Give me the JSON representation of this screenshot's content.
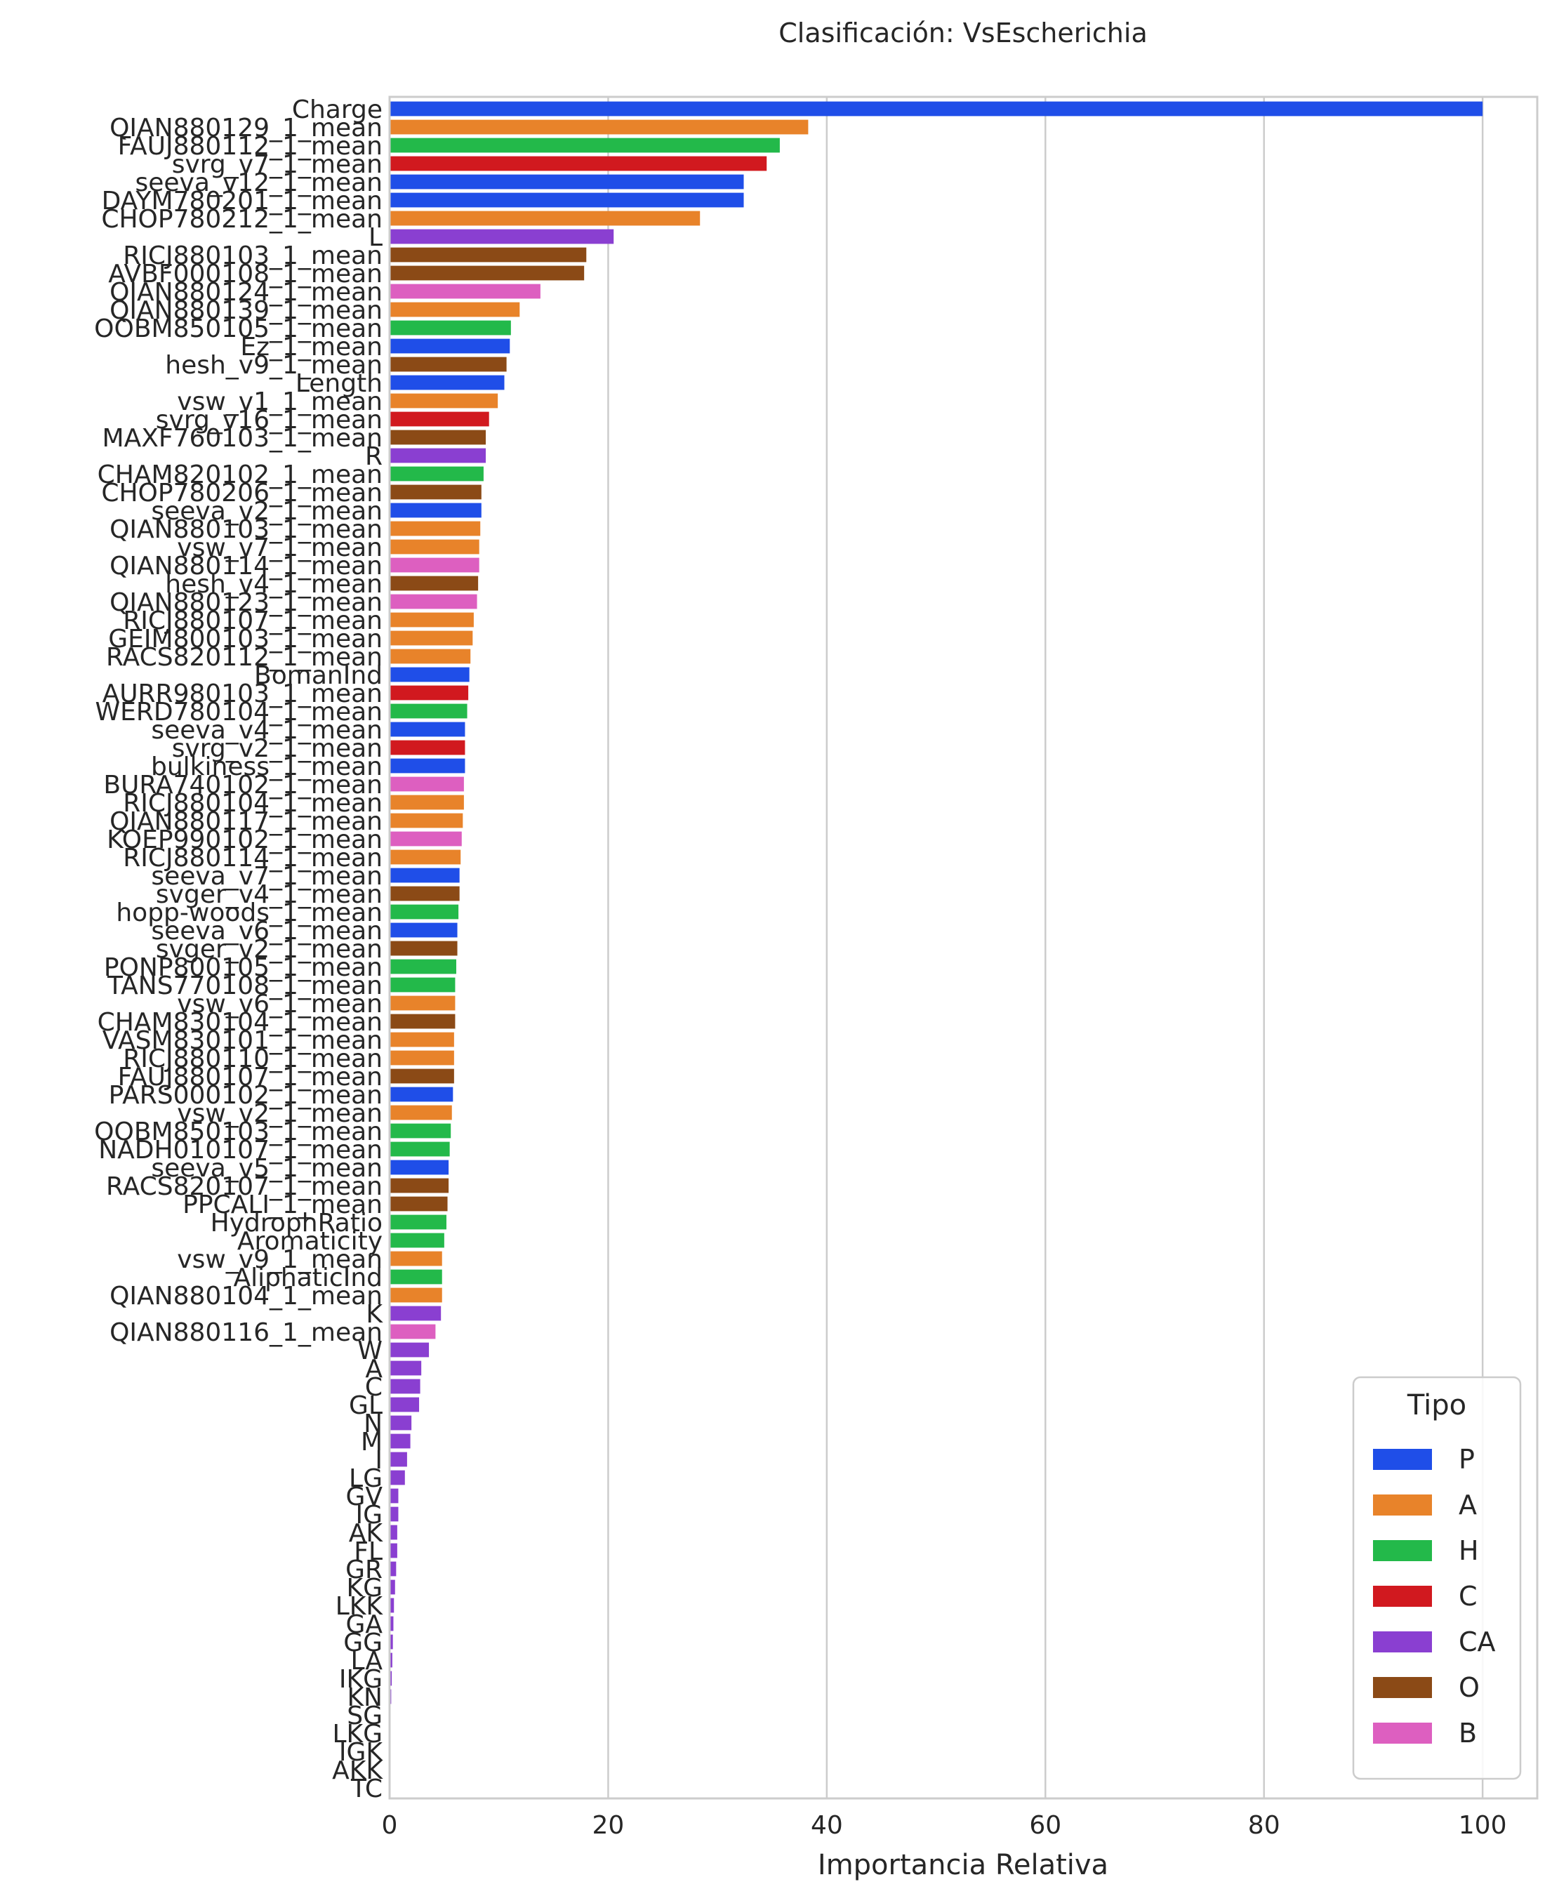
{
  "chart_data": {
    "type": "bar",
    "orientation": "horizontal",
    "title": "Clasificación: VsEscherichia",
    "xlabel": "Importancia Relativa",
    "ylabel": "",
    "xlim": [
      0,
      105
    ],
    "xticks": [
      0,
      20,
      40,
      60,
      80,
      100
    ],
    "grid": true,
    "legend": {
      "title": "Tipo",
      "placement": "bottom-right",
      "entries": [
        {
          "label": "P",
          "color": "#1f4ee8"
        },
        {
          "label": "A",
          "color": "#e8832a"
        },
        {
          "label": "H",
          "color": "#23b94a"
        },
        {
          "label": "C",
          "color": "#d1191f"
        },
        {
          "label": "CA",
          "color": "#8a3fd1"
        },
        {
          "label": "O",
          "color": "#8b4a16"
        },
        {
          "label": "B",
          "color": "#dd5fc0"
        }
      ]
    },
    "bars": [
      {
        "label": "Charge",
        "value": 100,
        "type": "P"
      },
      {
        "label": "QIAN880129_1_mean",
        "value": 38.3,
        "type": "A"
      },
      {
        "label": "FAUJ880112_1_mean",
        "value": 35.7,
        "type": "H"
      },
      {
        "label": "svrg_v7_1_mean",
        "value": 34.5,
        "type": "C"
      },
      {
        "label": "seeva_v12_1_mean",
        "value": 32.4,
        "type": "P"
      },
      {
        "label": "DAYM780201_1_mean",
        "value": 32.4,
        "type": "P"
      },
      {
        "label": "CHOP780212_1_mean",
        "value": 28.4,
        "type": "A"
      },
      {
        "label": "L",
        "value": 20.5,
        "type": "CA"
      },
      {
        "label": "RICJ880103_1_mean",
        "value": 18.0,
        "type": "O"
      },
      {
        "label": "AVBF000108_1_mean",
        "value": 17.8,
        "type": "O"
      },
      {
        "label": "QIAN880124_1_mean",
        "value": 13.8,
        "type": "B"
      },
      {
        "label": "QIAN880139_1_mean",
        "value": 11.9,
        "type": "A"
      },
      {
        "label": "OOBM850105_1_mean",
        "value": 11.1,
        "type": "H"
      },
      {
        "label": "Ez_1_mean",
        "value": 11.0,
        "type": "P"
      },
      {
        "label": "hesh_v9_1_mean",
        "value": 10.7,
        "type": "O"
      },
      {
        "label": "Length",
        "value": 10.5,
        "type": "P"
      },
      {
        "label": "vsw_v1_1_mean",
        "value": 9.9,
        "type": "A"
      },
      {
        "label": "svrg_v16_1_mean",
        "value": 9.1,
        "type": "C"
      },
      {
        "label": "MAXF760103_1_mean",
        "value": 8.8,
        "type": "O"
      },
      {
        "label": "R",
        "value": 8.8,
        "type": "CA"
      },
      {
        "label": "CHAM820102_1_mean",
        "value": 8.6,
        "type": "H"
      },
      {
        "label": "CHOP780206_1_mean",
        "value": 8.4,
        "type": "O"
      },
      {
        "label": "seeva_v2_1_mean",
        "value": 8.4,
        "type": "P"
      },
      {
        "label": "QIAN880103_1_mean",
        "value": 8.3,
        "type": "A"
      },
      {
        "label": "vsw_v7_1_mean",
        "value": 8.2,
        "type": "A"
      },
      {
        "label": "QIAN880114_1_mean",
        "value": 8.2,
        "type": "B"
      },
      {
        "label": "hesh_v4_1_mean",
        "value": 8.1,
        "type": "O"
      },
      {
        "label": "QIAN880123_1_mean",
        "value": 8.0,
        "type": "B"
      },
      {
        "label": "RICJ880107_1_mean",
        "value": 7.7,
        "type": "A"
      },
      {
        "label": "GEIM800103_1_mean",
        "value": 7.6,
        "type": "A"
      },
      {
        "label": "RACS820112_1_mean",
        "value": 7.4,
        "type": "A"
      },
      {
        "label": "BomanInd",
        "value": 7.3,
        "type": "P"
      },
      {
        "label": "AURR980103_1_mean",
        "value": 7.2,
        "type": "C"
      },
      {
        "label": "WERD780104_1_mean",
        "value": 7.1,
        "type": "H"
      },
      {
        "label": "seeva_v4_1_mean",
        "value": 6.9,
        "type": "P"
      },
      {
        "label": "svrg_v2_1_mean",
        "value": 6.9,
        "type": "C"
      },
      {
        "label": "bulkiness_1_mean",
        "value": 6.9,
        "type": "P"
      },
      {
        "label": "BURA740102_1_mean",
        "value": 6.8,
        "type": "B"
      },
      {
        "label": "RICJ880104_1_mean",
        "value": 6.8,
        "type": "A"
      },
      {
        "label": "QIAN880117_1_mean",
        "value": 6.7,
        "type": "A"
      },
      {
        "label": "KOEP990102_1_mean",
        "value": 6.6,
        "type": "B"
      },
      {
        "label": "RICJ880114_1_mean",
        "value": 6.5,
        "type": "A"
      },
      {
        "label": "seeva_v7_1_mean",
        "value": 6.4,
        "type": "P"
      },
      {
        "label": "svger_v4_1_mean",
        "value": 6.4,
        "type": "O"
      },
      {
        "label": "hopp-woods_1_mean",
        "value": 6.3,
        "type": "H"
      },
      {
        "label": "seeva_v6_1_mean",
        "value": 6.2,
        "type": "P"
      },
      {
        "label": "svger_v2_1_mean",
        "value": 6.2,
        "type": "O"
      },
      {
        "label": "PONP800105_1_mean",
        "value": 6.1,
        "type": "H"
      },
      {
        "label": "TANS770108_1_mean",
        "value": 6.0,
        "type": "H"
      },
      {
        "label": "vsw_v6_1_mean",
        "value": 6.0,
        "type": "A"
      },
      {
        "label": "CHAM830104_1_mean",
        "value": 6.0,
        "type": "O"
      },
      {
        "label": "VASM830101_1_mean",
        "value": 5.9,
        "type": "A"
      },
      {
        "label": "RICJ880110_1_mean",
        "value": 5.9,
        "type": "A"
      },
      {
        "label": "FAUJ880107_1_mean",
        "value": 5.9,
        "type": "O"
      },
      {
        "label": "PARS000102_1_mean",
        "value": 5.8,
        "type": "P"
      },
      {
        "label": "vsw_v2_1_mean",
        "value": 5.7,
        "type": "A"
      },
      {
        "label": "OOBM850103_1_mean",
        "value": 5.6,
        "type": "H"
      },
      {
        "label": "NADH010107_1_mean",
        "value": 5.5,
        "type": "H"
      },
      {
        "label": "seeva_v5_1_mean",
        "value": 5.4,
        "type": "P"
      },
      {
        "label": "RACS820107_1_mean",
        "value": 5.4,
        "type": "O"
      },
      {
        "label": "PPCALI_1_mean",
        "value": 5.3,
        "type": "O"
      },
      {
        "label": "HydrophRatio",
        "value": 5.2,
        "type": "H"
      },
      {
        "label": "Aromaticity",
        "value": 5.0,
        "type": "H"
      },
      {
        "label": "vsw_v9_1_mean",
        "value": 4.8,
        "type": "A"
      },
      {
        "label": "AliphaticInd",
        "value": 4.8,
        "type": "H"
      },
      {
        "label": "QIAN880104_1_mean",
        "value": 4.8,
        "type": "A"
      },
      {
        "label": "K",
        "value": 4.7,
        "type": "CA"
      },
      {
        "label": "QIAN880116_1_mean",
        "value": 4.2,
        "type": "B"
      },
      {
        "label": "W",
        "value": 3.6,
        "type": "CA"
      },
      {
        "label": "A",
        "value": 2.9,
        "type": "CA"
      },
      {
        "label": "C",
        "value": 2.8,
        "type": "CA"
      },
      {
        "label": "GL",
        "value": 2.7,
        "type": "CA"
      },
      {
        "label": "N",
        "value": 2.0,
        "type": "CA"
      },
      {
        "label": "M",
        "value": 1.9,
        "type": "CA"
      },
      {
        "label": "I",
        "value": 1.6,
        "type": "CA"
      },
      {
        "label": "LG",
        "value": 1.4,
        "type": "CA"
      },
      {
        "label": "GV",
        "value": 0.8,
        "type": "CA"
      },
      {
        "label": "IG",
        "value": 0.8,
        "type": "CA"
      },
      {
        "label": "AK",
        "value": 0.7,
        "type": "CA"
      },
      {
        "label": "FL",
        "value": 0.7,
        "type": "CA"
      },
      {
        "label": "GR",
        "value": 0.6,
        "type": "CA"
      },
      {
        "label": "KG",
        "value": 0.5,
        "type": "CA"
      },
      {
        "label": "LKK",
        "value": 0.4,
        "type": "CA"
      },
      {
        "label": "GA",
        "value": 0.35,
        "type": "CA"
      },
      {
        "label": "GG",
        "value": 0.3,
        "type": "CA"
      },
      {
        "label": "LA",
        "value": 0.25,
        "type": "CA"
      },
      {
        "label": "IKG",
        "value": 0.2,
        "type": "CA"
      },
      {
        "label": "KN",
        "value": 0.15,
        "type": "CA"
      },
      {
        "label": "SG",
        "value": 0,
        "type": "CA"
      },
      {
        "label": "LKG",
        "value": 0,
        "type": "CA"
      },
      {
        "label": "IGK",
        "value": 0,
        "type": "CA"
      },
      {
        "label": "AKK",
        "value": 0,
        "type": "CA"
      },
      {
        "label": "TC",
        "value": 0,
        "type": "CA"
      }
    ]
  }
}
